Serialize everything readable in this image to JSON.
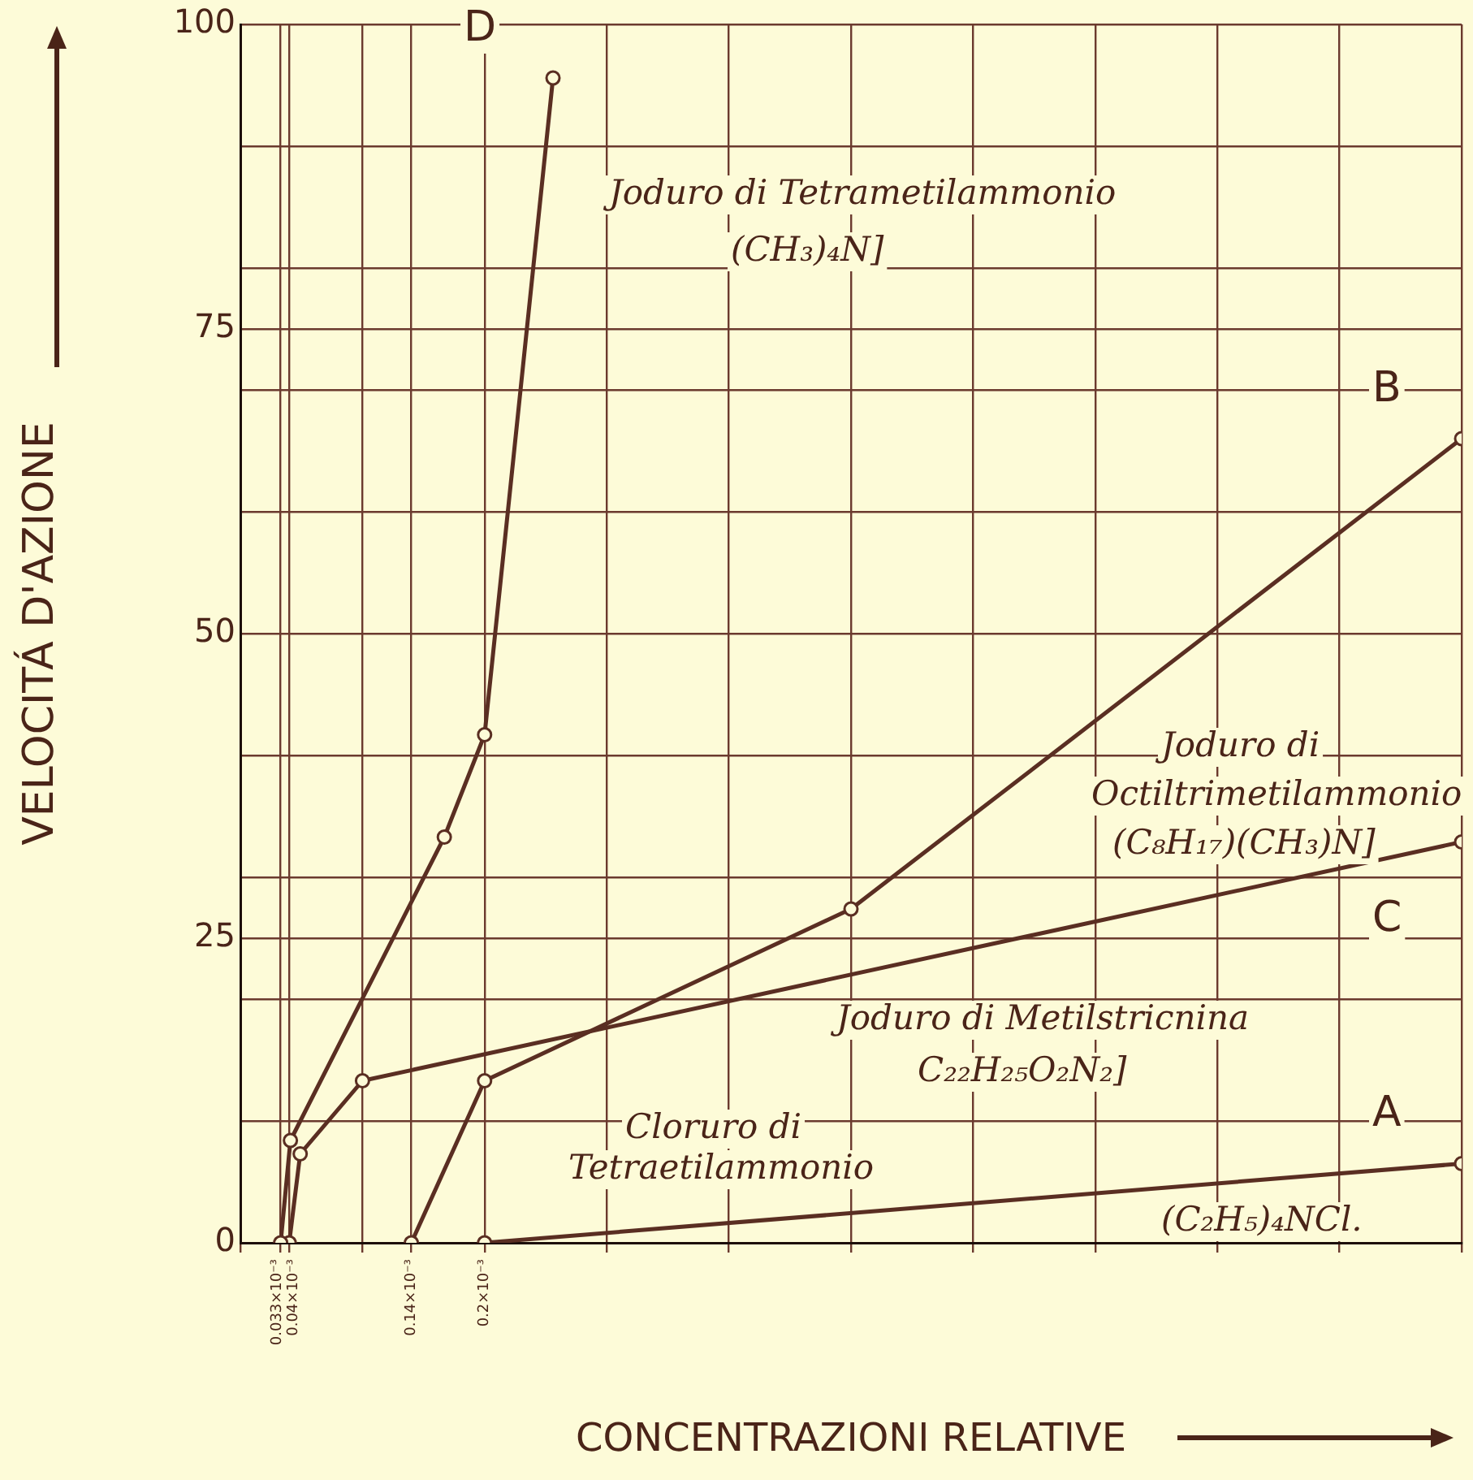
{
  "chart_data": {
    "type": "line",
    "xlabel": "CONCENTRAZIONI RELATIVE",
    "ylabel": "VELOCITÁ D'AZIONE",
    "xlim": [
      0,
      0.001
    ],
    "ylim": [
      0,
      100
    ],
    "xticks": [
      {
        "value": 0,
        "label": null
      },
      {
        "value": 3.3e-05,
        "label": "0.033×10⁻³"
      },
      {
        "value": 4e-05,
        "label": "0.04×10⁻³"
      },
      {
        "value": 0.0001,
        "label": null
      },
      {
        "value": 0.00014,
        "label": "0.14×10⁻³"
      },
      {
        "value": 0.0002,
        "label": "0.2×10⁻³"
      },
      {
        "value": 0.0003,
        "label": null
      },
      {
        "value": 0.0004,
        "label": null
      },
      {
        "value": 0.0005,
        "label": null
      },
      {
        "value": 0.0006,
        "label": null
      },
      {
        "value": 0.0007,
        "label": null
      },
      {
        "value": 0.0008,
        "label": null
      },
      {
        "value": 0.0009,
        "label": null
      },
      {
        "value": 0.001,
        "label": null
      }
    ],
    "yticks": [
      0,
      {
        "value": 10,
        "label": null
      },
      {
        "value": 20,
        "label": null
      },
      25,
      {
        "value": 30,
        "label": null
      },
      {
        "value": 40,
        "label": null
      },
      50,
      {
        "value": 60,
        "label": null
      },
      {
        "value": 70,
        "label": null
      },
      75,
      {
        "value": 80,
        "label": null
      },
      {
        "value": 90,
        "label": null
      },
      100
    ],
    "grid": true,
    "legend": false,
    "marker": "circle",
    "line_style": "solid",
    "series": [
      {
        "name": "D",
        "color": "#5a2e22",
        "x": [
          3.3e-05,
          4.1e-05,
          0.000167,
          0.0002,
          0.000256
        ],
        "values": [
          0,
          8.4,
          33.3,
          41.7,
          95.6
        ]
      },
      {
        "name": "C",
        "color": "#5a2e22",
        "x": [
          4e-05,
          4.9e-05,
          0.0001,
          0.001
        ],
        "values": [
          0,
          7.3,
          13.3,
          32.9
        ]
      },
      {
        "name": "B",
        "color": "#5a2e22",
        "x": [
          0.00014,
          0.0002,
          0.0005,
          0.001
        ],
        "values": [
          0,
          13.3,
          27.4,
          66
        ]
      },
      {
        "name": "A",
        "color": "#5a2e22",
        "x": [
          0.0002,
          0.001
        ],
        "values": [
          0,
          6.5
        ]
      }
    ],
    "annotations": [
      "Joduro di Tetrametilammonio",
      "(CH₃)₄N]",
      "Joduro di",
      "Octiltrimetilammonio",
      "(C₈H₁₇)(CH₃)N]",
      "Joduro di Metilstricnina",
      "C₂₂H₂₅O₂N₂]",
      "Cloruro di",
      "Tetraetilammonio",
      "(C₂H₅)₄NCl."
    ]
  }
}
